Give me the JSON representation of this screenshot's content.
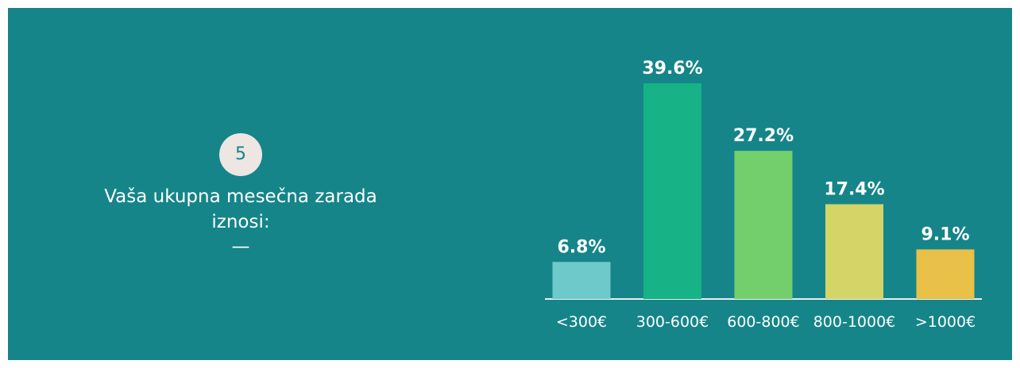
{
  "badge": "5",
  "question": "Vaša ukupna mesečna zarada iznosi:",
  "separator": "—",
  "chart_data": {
    "type": "bar",
    "categories": [
      "<300€",
      "300-600€",
      "600-800€",
      "800-1000€",
      ">1000€"
    ],
    "values": [
      6.8,
      39.6,
      27.2,
      17.4,
      9.1
    ],
    "value_labels": [
      "6.8%",
      "39.6%",
      "27.2%",
      "17.4%",
      "9.1%"
    ],
    "colors": [
      "#6ecaca",
      "#17b286",
      "#72cf6c",
      "#d5d467",
      "#e9c048"
    ]
  }
}
